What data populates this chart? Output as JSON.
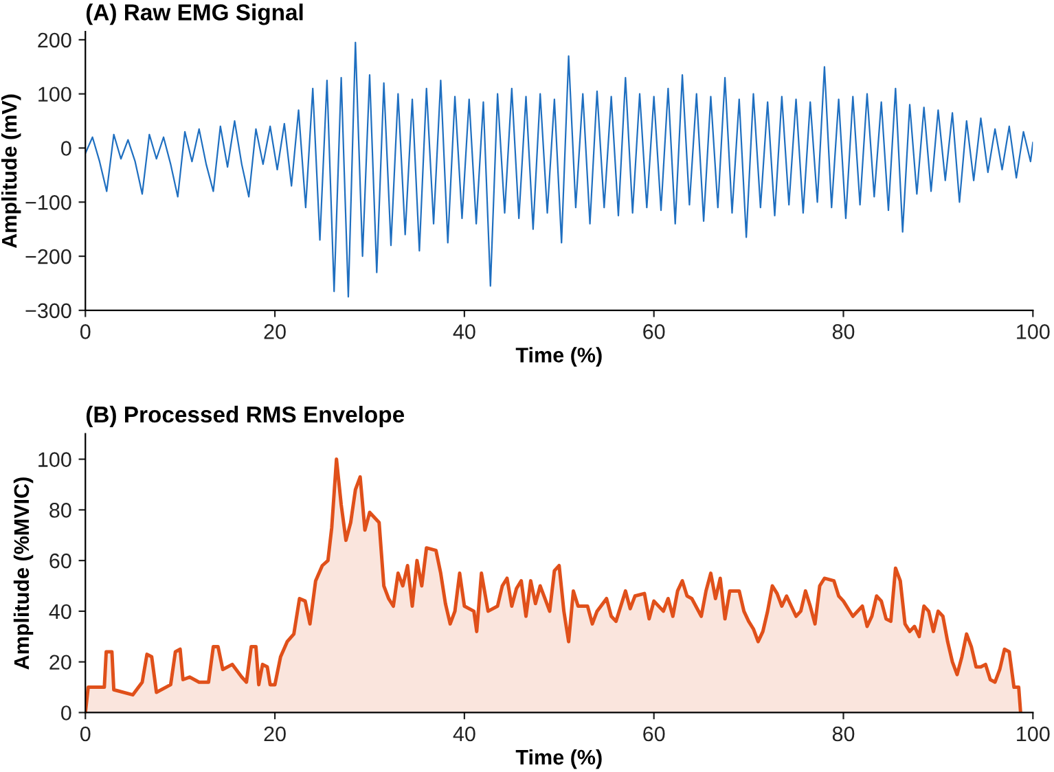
{
  "chart_data": [
    {
      "type": "line",
      "title": "(A) Raw EMG Signal",
      "xlabel": "Time (%)",
      "ylabel": "Amplitude (mV)",
      "xlim": [
        0,
        100
      ],
      "xticks": [
        0,
        20,
        40,
        60,
        80,
        100
      ],
      "ylim": [
        -300,
        215
      ],
      "yticks": [
        -300,
        -200,
        -100,
        0,
        100,
        200
      ],
      "grid": false,
      "legend": false,
      "series": [
        {
          "color": "#1f6fc0",
          "x": [
            0,
            0.75,
            1.5,
            2.25,
            3,
            3.75,
            4.5,
            5.25,
            6,
            6.75,
            7.5,
            8.25,
            9,
            9.75,
            10.5,
            11.25,
            12,
            12.75,
            13.5,
            14.25,
            15,
            15.75,
            16.5,
            17.25,
            18,
            18.75,
            19.5,
            20.25,
            21,
            21.75,
            22.5,
            23.25,
            24,
            24.75,
            25.5,
            26.25,
            27,
            27.75,
            28.5,
            29.25,
            30,
            30.75,
            31.5,
            32.25,
            33,
            33.75,
            34.5,
            35.25,
            36,
            36.75,
            37.5,
            38.25,
            39,
            39.75,
            40.5,
            41.25,
            42,
            42.75,
            43.5,
            44.25,
            45,
            45.75,
            46.5,
            47.25,
            48,
            48.75,
            49.5,
            50.25,
            51,
            51.75,
            52.5,
            53.25,
            54,
            54.75,
            55.5,
            56.25,
            57,
            57.75,
            58.5,
            59.25,
            60,
            60.75,
            61.5,
            62.25,
            63,
            63.75,
            64.5,
            65.25,
            66,
            66.75,
            67.5,
            68.25,
            69,
            69.75,
            70.5,
            71.25,
            72,
            72.75,
            73.5,
            74.25,
            75,
            75.75,
            76.5,
            77.25,
            78,
            78.75,
            79.5,
            80.25,
            81,
            81.75,
            82.5,
            83.25,
            84,
            84.75,
            85.5,
            86.25,
            87,
            87.75,
            88.5,
            89.25,
            90,
            90.75,
            91.5,
            92.25,
            93,
            93.75,
            94.5,
            95.25,
            96,
            96.75,
            97.5,
            98.25,
            99,
            99.75,
            100
          ],
          "values": [
            -10,
            20,
            -25,
            -80,
            25,
            -20,
            15,
            -25,
            -85,
            25,
            -20,
            20,
            -30,
            -90,
            30,
            -25,
            35,
            -30,
            -80,
            40,
            -35,
            50,
            -30,
            -90,
            35,
            -30,
            40,
            -40,
            45,
            -70,
            70,
            -110,
            110,
            -170,
            125,
            -265,
            130,
            -275,
            195,
            -200,
            135,
            -230,
            120,
            -180,
            100,
            -160,
            90,
            -190,
            110,
            -140,
            125,
            -175,
            95,
            -130,
            90,
            -140,
            85,
            -255,
            100,
            -120,
            110,
            -130,
            95,
            -150,
            100,
            -120,
            90,
            -175,
            170,
            -110,
            100,
            -140,
            105,
            -110,
            95,
            -125,
            130,
            -120,
            100,
            -110,
            95,
            -115,
            110,
            -140,
            135,
            -105,
            100,
            -135,
            95,
            -110,
            130,
            -120,
            90,
            -165,
            100,
            -110,
            85,
            -125,
            95,
            -105,
            90,
            -120,
            85,
            -100,
            150,
            -110,
            90,
            -130,
            95,
            -105,
            100,
            -90,
            85,
            -115,
            110,
            -155,
            80,
            -85,
            75,
            -80,
            70,
            -60,
            65,
            -100,
            50,
            -60,
            55,
            -45,
            35,
            -40,
            40,
            -55,
            30,
            -25,
            10
          ]
        }
      ]
    },
    {
      "type": "area",
      "title": "(B) Processed RMS Envelope",
      "xlabel": "Time (%)",
      "ylabel": "Amplitude (%MVIC)",
      "xlim": [
        0,
        100
      ],
      "xticks": [
        0,
        20,
        40,
        60,
        80,
        100
      ],
      "ylim": [
        0,
        110
      ],
      "yticks": [
        0,
        20,
        40,
        60,
        80,
        100
      ],
      "grid": false,
      "legend": false,
      "series": [
        {
          "color": "#e0501a",
          "x": [
            0,
            0.3,
            2,
            2.2,
            2.8,
            3,
            5,
            6,
            6.5,
            7,
            7.5,
            9,
            9.5,
            10,
            10.3,
            11,
            12,
            13,
            13.5,
            14,
            14.5,
            15.5,
            16.5,
            17,
            17.5,
            18,
            18.3,
            18.7,
            19.2,
            19.5,
            20,
            20.6,
            21.3,
            22,
            22.6,
            23.2,
            23.7,
            24.3,
            25,
            25.6,
            26,
            26.5,
            27,
            27.5,
            28,
            28.5,
            29,
            29.5,
            30,
            31,
            31.5,
            32,
            32.5,
            33,
            33.5,
            34,
            34.5,
            35,
            35.5,
            36,
            37,
            37.5,
            38,
            38.5,
            39,
            39.5,
            40,
            41,
            41.3,
            41.8,
            42.5,
            43.5,
            44,
            44.5,
            45,
            45.5,
            46,
            46.5,
            47,
            47.5,
            48,
            48.5,
            49,
            49.5,
            50,
            50.5,
            51,
            51.5,
            52,
            53,
            53.5,
            54,
            55,
            55.5,
            56,
            57,
            57.5,
            58,
            59,
            59.5,
            60,
            61,
            61.5,
            62,
            62.5,
            63,
            63.5,
            64,
            65,
            65.5,
            66,
            66.5,
            67,
            67.5,
            68,
            69,
            69.5,
            70,
            70.5,
            71,
            71.5,
            72,
            72.5,
            73,
            73.5,
            74,
            75,
            75.5,
            76,
            76.5,
            77,
            77.5,
            78,
            79,
            79.5,
            80,
            81,
            82,
            82.5,
            83,
            83.5,
            84,
            84.5,
            85,
            85.5,
            86,
            86.5,
            87,
            87.5,
            88,
            88.5,
            89,
            89.5,
            90,
            90.5,
            91,
            91.5,
            92,
            92.5,
            93,
            93.5,
            94,
            94.5,
            95,
            95.5,
            96,
            96.5,
            97,
            97.5,
            98,
            98.5,
            98.7
          ],
          "values": [
            0,
            10,
            10,
            24,
            24,
            9,
            7,
            12,
            23,
            22,
            8,
            11,
            24,
            25,
            13,
            14,
            12,
            12,
            26,
            26,
            17,
            19,
            14,
            12,
            26,
            26,
            11,
            19,
            18,
            11,
            11,
            22,
            28,
            31,
            45,
            44,
            35,
            52,
            58,
            60,
            73,
            100,
            82,
            68,
            75,
            88,
            93,
            72,
            79,
            75,
            50,
            45,
            42,
            55,
            50,
            58,
            42,
            60,
            50,
            65,
            64,
            55,
            43,
            35,
            40,
            55,
            42,
            40,
            32,
            55,
            40,
            42,
            50,
            53,
            42,
            49,
            52,
            38,
            52,
            43,
            50,
            45,
            40,
            56,
            58,
            40,
            28,
            48,
            42,
            42,
            35,
            40,
            45,
            38,
            36,
            48,
            41,
            46,
            47,
            37,
            44,
            40,
            45,
            38,
            48,
            52,
            46,
            45,
            38,
            48,
            55,
            45,
            53,
            37,
            48,
            48,
            40,
            36,
            33,
            28,
            32,
            40,
            50,
            47,
            42,
            46,
            38,
            40,
            48,
            42,
            35,
            50,
            53,
            52,
            46,
            44,
            38,
            42,
            34,
            38,
            46,
            44,
            37,
            36,
            57,
            52,
            35,
            32,
            34,
            30,
            42,
            40,
            32,
            40,
            38,
            28,
            20,
            15,
            22,
            31,
            26,
            18,
            18,
            19,
            13,
            12,
            17,
            25,
            24,
            10,
            10,
            0
          ]
        }
      ]
    }
  ]
}
